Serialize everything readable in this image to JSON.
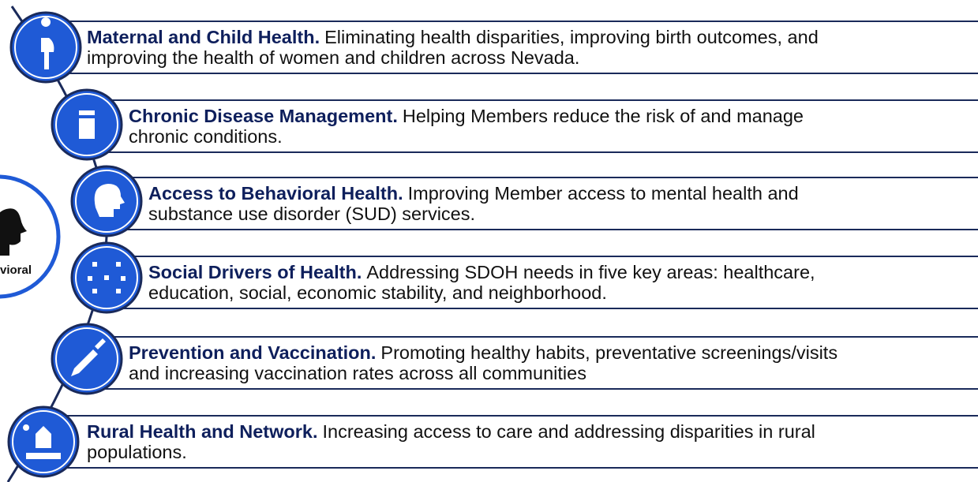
{
  "left_badge": {
    "label": "vioral"
  },
  "items": [
    {
      "title": "Maternal and Child Health.",
      "desc": [
        "Eliminating health disparities, improving birth outcomes, and",
        "improving the health of women and children across Nevada."
      ]
    },
    {
      "title": "Chronic Disease Management.",
      "desc": [
        "Helping Members reduce the risk of and manage",
        "chronic conditions."
      ]
    },
    {
      "title": "Access to Behavioral Health.",
      "desc": [
        "Improving Member access to mental health and",
        "substance use disorder (SUD) services."
      ]
    },
    {
      "title": "Social Drivers of Health.",
      "desc": [
        "Addressing SDOH needs in five key areas: healthcare,",
        "education, social, economic stability, and neighborhood."
      ]
    },
    {
      "title": "Prevention and Vaccination.",
      "desc": [
        "Promoting healthy habits, preventative screenings/visits",
        "and increasing vaccination rates across all communities"
      ]
    },
    {
      "title": "Rural Health and Network.",
      "desc": [
        "Increasing access to care and addressing disparities in rural",
        "populations."
      ]
    }
  ]
}
